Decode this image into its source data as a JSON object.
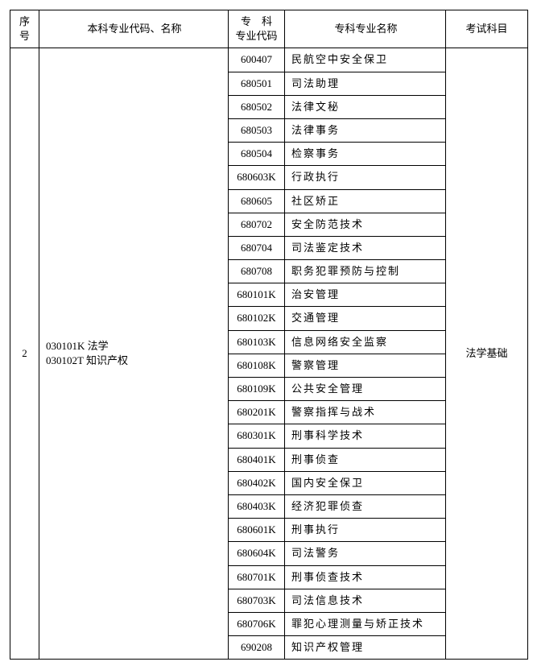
{
  "headers": {
    "index": "序号",
    "major": "本科专业代码、名称",
    "scode_line1": "专　科",
    "scode_line2": "专业代码",
    "sname": "专科专业名称",
    "exam": "考试科目"
  },
  "group": {
    "index": "2",
    "major_line1": "030101K 法学",
    "major_line2": "030102T 知识产权",
    "exam": "法学基础"
  },
  "rows": [
    {
      "code": "600407",
      "name": "民航空中安全保卫"
    },
    {
      "code": "680501",
      "name": "司法助理"
    },
    {
      "code": "680502",
      "name": "法律文秘"
    },
    {
      "code": "680503",
      "name": "法律事务"
    },
    {
      "code": "680504",
      "name": "检察事务"
    },
    {
      "code": "680603K",
      "name": "行政执行"
    },
    {
      "code": "680605",
      "name": "社区矫正"
    },
    {
      "code": "680702",
      "name": "安全防范技术"
    },
    {
      "code": "680704",
      "name": "司法鉴定技术"
    },
    {
      "code": "680708",
      "name": "职务犯罪预防与控制"
    },
    {
      "code": "680101K",
      "name": "治安管理"
    },
    {
      "code": "680102K",
      "name": "交通管理"
    },
    {
      "code": "680103K",
      "name": "信息网络安全监察"
    },
    {
      "code": "680108K",
      "name": "警察管理"
    },
    {
      "code": "680109K",
      "name": "公共安全管理"
    },
    {
      "code": "680201K",
      "name": "警察指挥与战术"
    },
    {
      "code": "680301K",
      "name": "刑事科学技术"
    },
    {
      "code": "680401K",
      "name": "刑事侦查"
    },
    {
      "code": "680402K",
      "name": "国内安全保卫"
    },
    {
      "code": "680403K",
      "name": "经济犯罪侦查"
    },
    {
      "code": "680601K",
      "name": "刑事执行"
    },
    {
      "code": "680604K",
      "name": "司法警务"
    },
    {
      "code": "680701K",
      "name": "刑事侦查技术"
    },
    {
      "code": "680703K",
      "name": "司法信息技术"
    },
    {
      "code": "680706K",
      "name": "罪犯心理测量与矫正技术"
    },
    {
      "code": "690208",
      "name": "知识产权管理"
    }
  ],
  "style": {
    "rowspan": 26
  }
}
